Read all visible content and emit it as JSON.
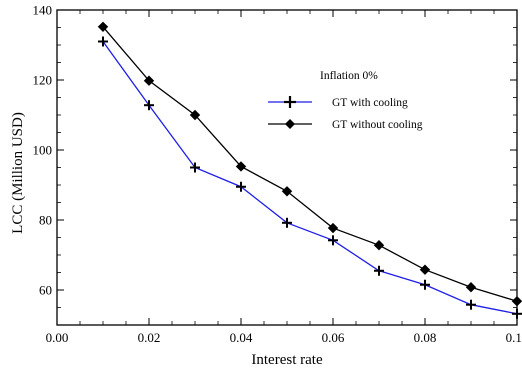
{
  "chart_data": {
    "type": "line",
    "xlabel": "Interest rate",
    "ylabel": "LCC (Million USD)",
    "xlim": [
      0.0,
      0.1
    ],
    "ylim": [
      50,
      140
    ],
    "x_ticks": [
      "0.00",
      "0.02",
      "0.04",
      "0.06",
      "0.08",
      "0.10"
    ],
    "y_ticks": [
      "60",
      "80",
      "100",
      "120",
      "140"
    ],
    "grid": false,
    "legend_title": "Inflation 0%",
    "legend_position": "upper-right",
    "x": [
      0.01,
      0.02,
      0.03,
      0.04,
      0.05,
      0.06,
      0.07,
      0.08,
      0.09,
      0.1
    ],
    "series": [
      {
        "name": "GT with cooling",
        "color": "#1f1fe6",
        "marker": "plus",
        "values": [
          131,
          112.8,
          95,
          89.5,
          79.2,
          74.2,
          65.5,
          61.5,
          55.8,
          53.2
        ]
      },
      {
        "name": "GT without cooling",
        "color": "#000000",
        "marker": "diamond",
        "values": [
          135.2,
          119.8,
          110,
          95.3,
          88.2,
          77.7,
          72.8,
          65.8,
          60.8,
          56.8
        ]
      }
    ]
  }
}
